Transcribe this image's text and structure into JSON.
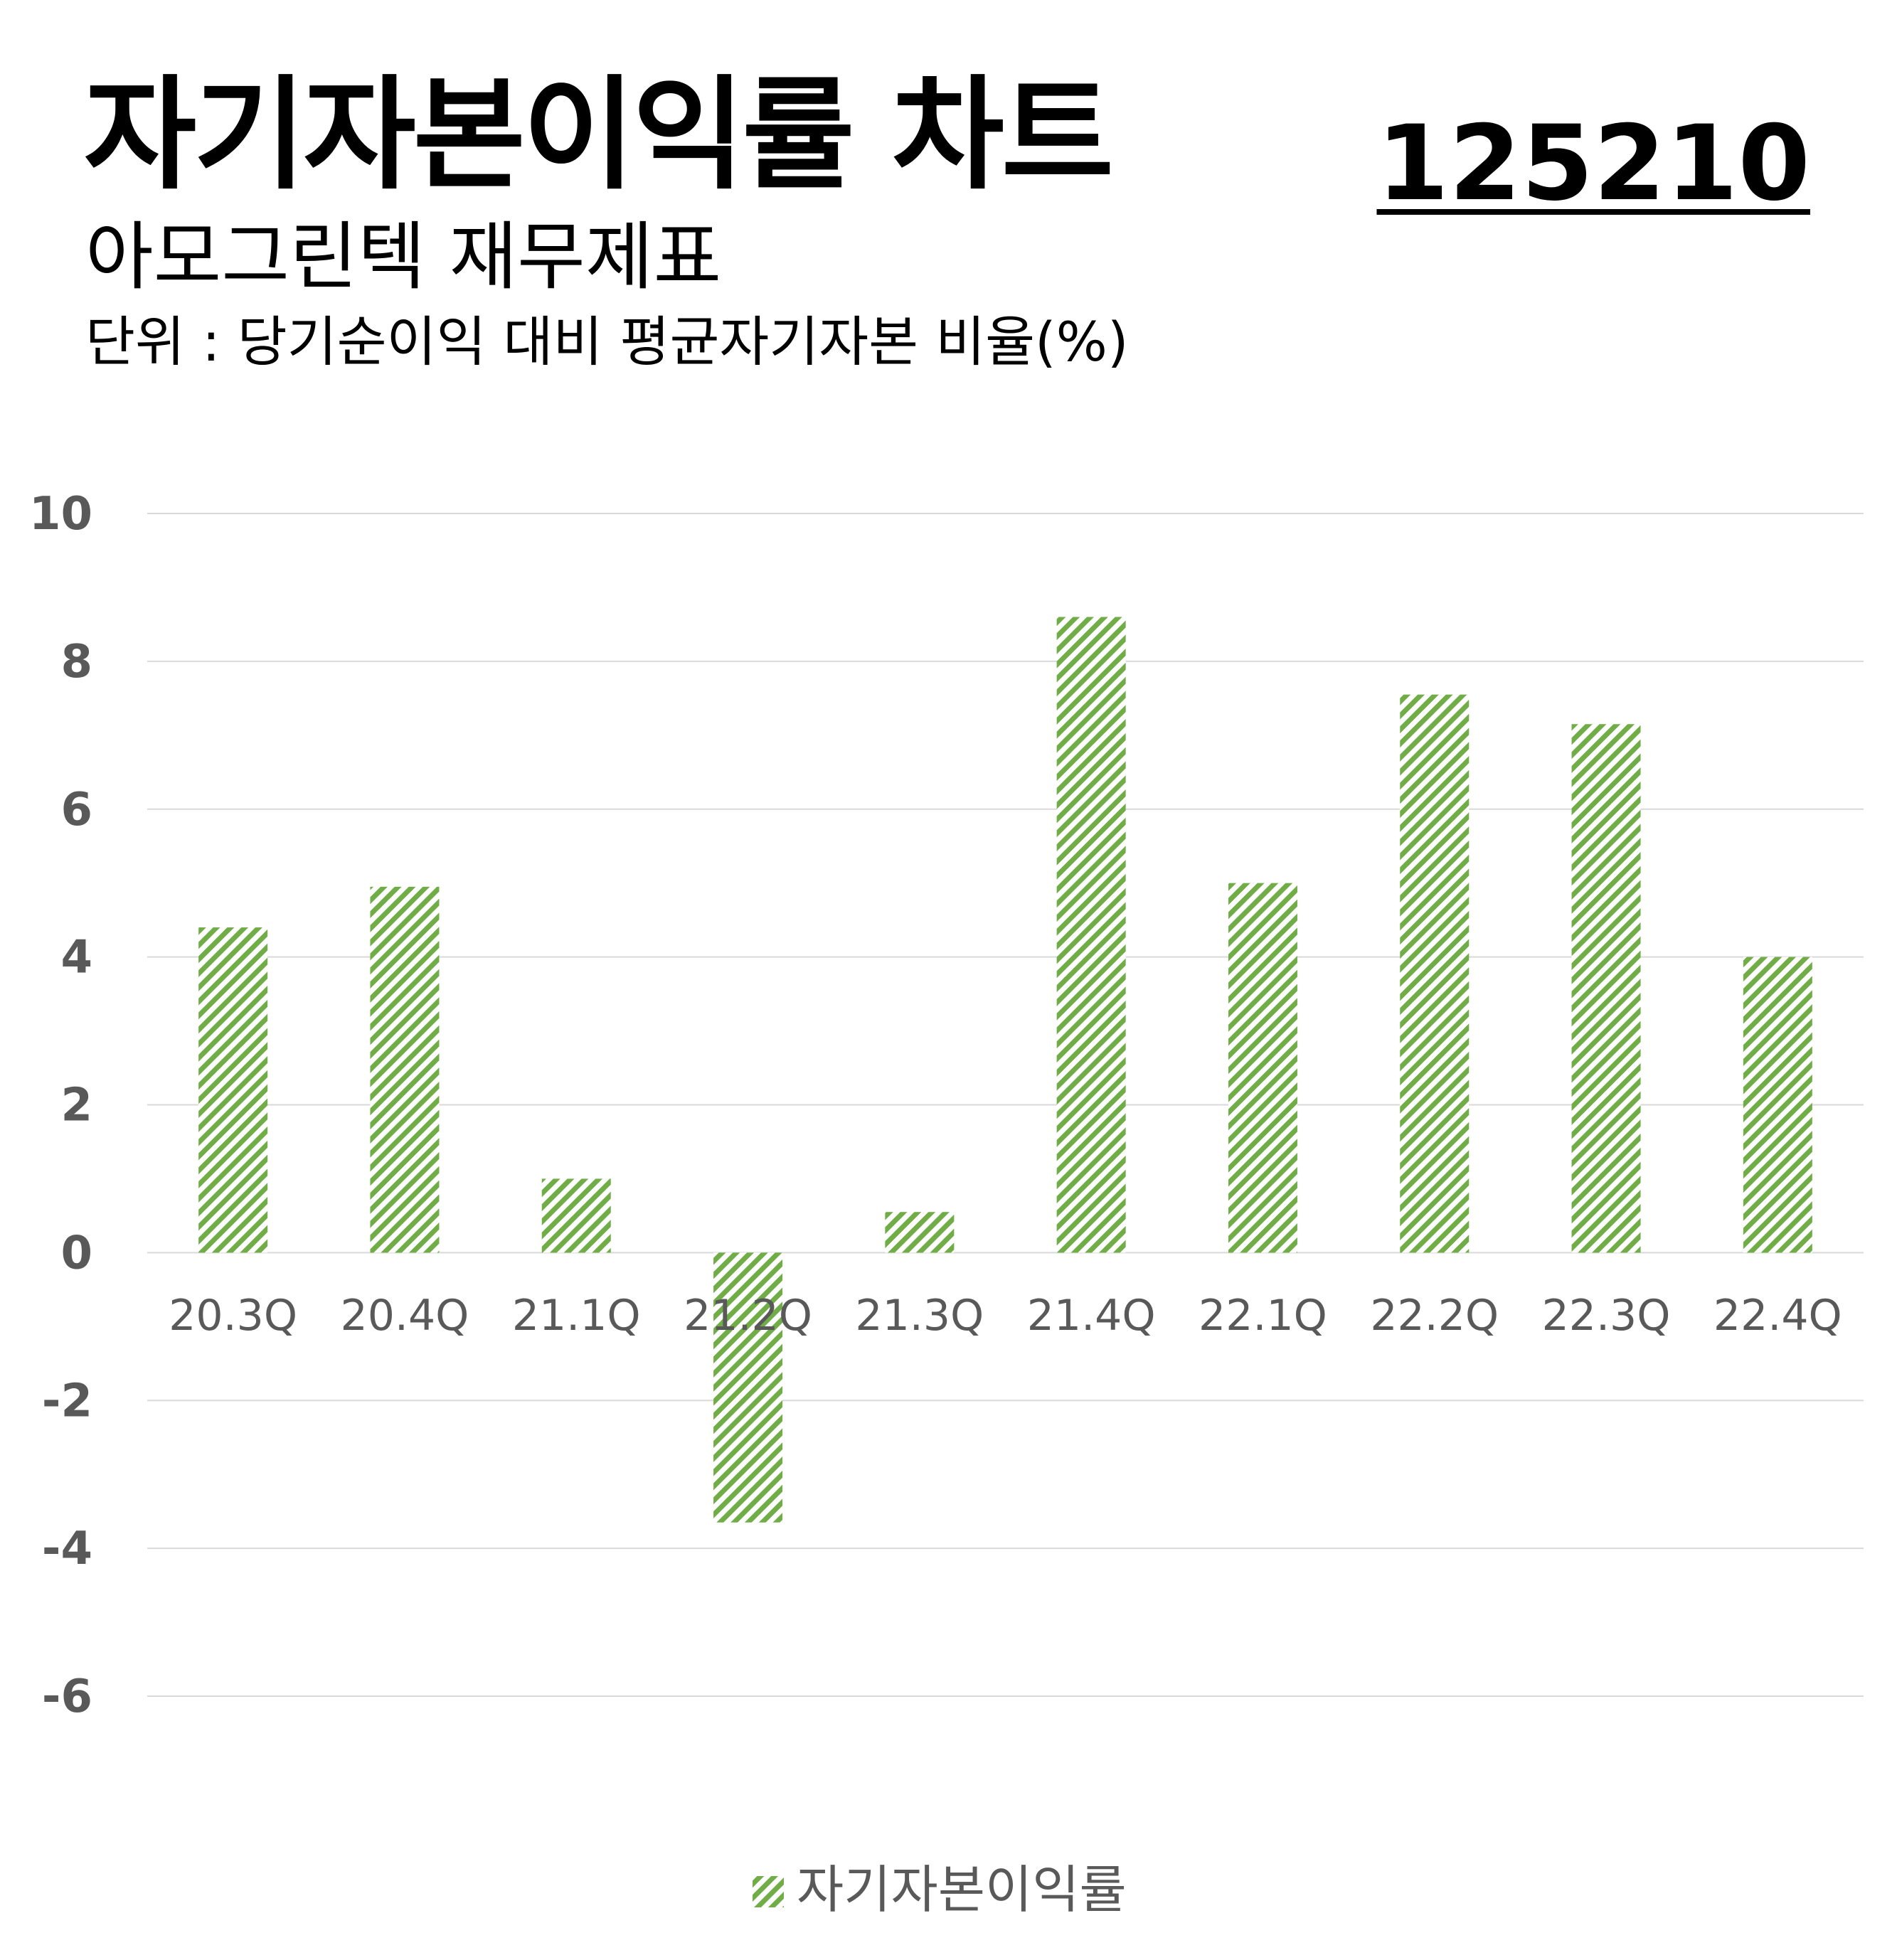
{
  "header": {
    "title": "자기자본이익률 차트",
    "ticker": "125210",
    "subtitle": "아모그린텍 재무제표",
    "unit": "단위 : 당기순이익 대비 평균자기자본 비율(%)"
  },
  "chart_data": {
    "type": "bar",
    "categories": [
      "20.3Q",
      "20.4Q",
      "21.1Q",
      "21.2Q",
      "21.3Q",
      "21.4Q",
      "22.1Q",
      "22.2Q",
      "22.3Q",
      "22.4Q"
    ],
    "series": [
      {
        "name": "자기자본이익률",
        "values": [
          4.4,
          4.95,
          1.0,
          -3.65,
          0.55,
          8.6,
          5.0,
          7.55,
          7.15,
          4.0
        ],
        "color": "#70ad47"
      }
    ],
    "yticks": [
      10,
      8,
      6,
      4,
      2,
      0,
      -2,
      -4,
      -6
    ],
    "ylim": [
      -6,
      10
    ],
    "grid": true,
    "legend": "bottom-center",
    "colors": {
      "bar": "#70ad47",
      "grid": "#d9d9d9",
      "tick_text": "#595959"
    }
  }
}
